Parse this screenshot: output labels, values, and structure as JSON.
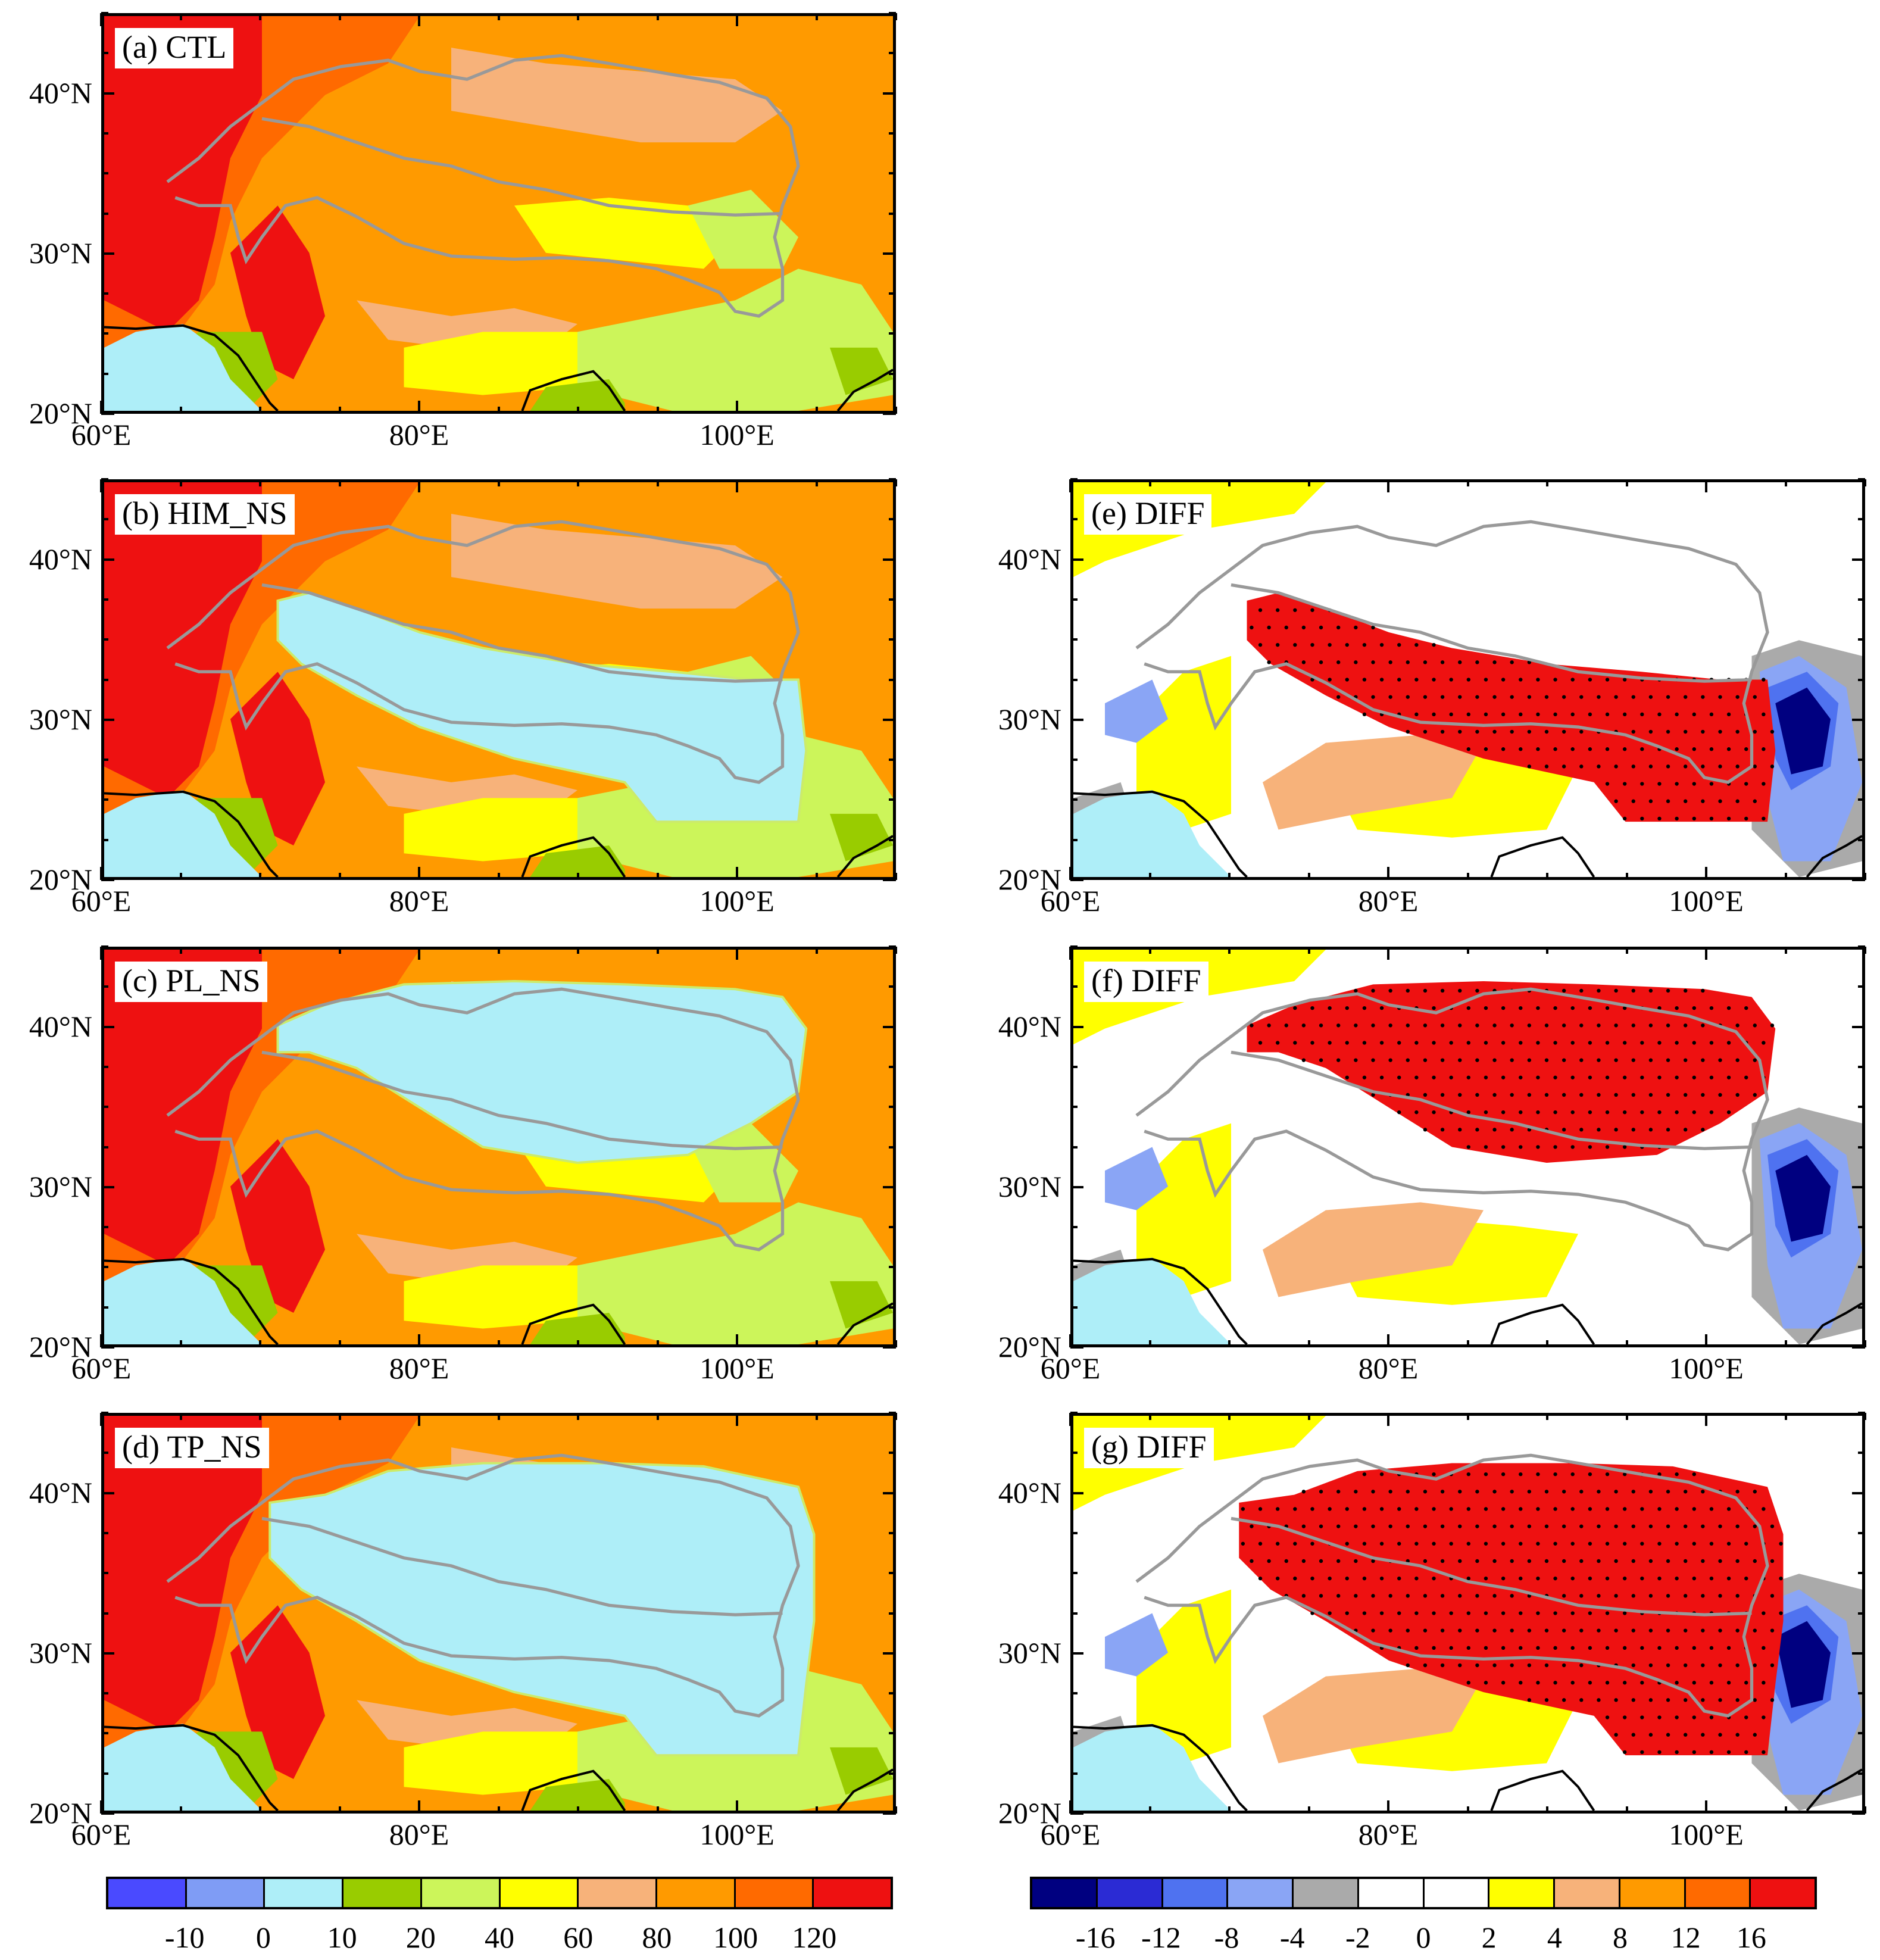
{
  "panels": [
    {
      "id": "a",
      "label": "(a) CTL",
      "col": 0,
      "row": 0,
      "kind": "absolute",
      "mask": "none"
    },
    {
      "id": "b",
      "label": "(b) HIM_NS",
      "col": 0,
      "row": 1,
      "kind": "absolute",
      "mask": "him"
    },
    {
      "id": "c",
      "label": "(c) PL_NS",
      "col": 0,
      "row": 2,
      "kind": "absolute",
      "mask": "pl"
    },
    {
      "id": "d",
      "label": "(d) TP_NS",
      "col": 0,
      "row": 3,
      "kind": "absolute",
      "mask": "tp"
    },
    {
      "id": "e",
      "label": "(e) DIFF",
      "col": 1,
      "row": 1,
      "kind": "diff",
      "mask": "him"
    },
    {
      "id": "f",
      "label": "(f) DIFF",
      "col": 1,
      "row": 2,
      "kind": "diff",
      "mask": "pl"
    },
    {
      "id": "g",
      "label": "(g) DIFF",
      "col": 1,
      "row": 3,
      "kind": "diff",
      "mask": "tp"
    }
  ],
  "axes": {
    "lon_ticks": [
      "60°E",
      "80°E",
      "100°E"
    ],
    "lat_ticks": [
      "40°N",
      "30°N",
      "20°N"
    ],
    "lon_range": [
      60,
      110
    ],
    "lat_range": [
      20,
      45
    ]
  },
  "colorbar_absolute": {
    "labels": [
      "-10",
      "0",
      "10",
      "20",
      "40",
      "60",
      "80",
      "100",
      "120"
    ],
    "colors": [
      "#4a4aff",
      "#7f9cf5",
      "#aeeef8",
      "#99cc00",
      "#ccf55a",
      "#ffff00",
      "#f7b27a",
      "#ff9a00",
      "#ff6a00",
      "#ee1111"
    ]
  },
  "colorbar_diff": {
    "labels": [
      "-16",
      "-12",
      "-8",
      "-4",
      "-2",
      "0",
      "2",
      "4",
      "8",
      "12",
      "16"
    ],
    "colors": [
      "#000080",
      "#2b2bd4",
      "#4f72f0",
      "#8aa5f5",
      "#aaaaaa",
      "#ffffff",
      "#ffffff",
      "#ffff00",
      "#f7b27a",
      "#ff9a00",
      "#ff6a00",
      "#ee1111"
    ]
  },
  "map_colors": {
    "ocean": "#aeeef8",
    "coast": "#000000",
    "contour_gray": "#999999",
    "stipple": "#000000"
  }
}
